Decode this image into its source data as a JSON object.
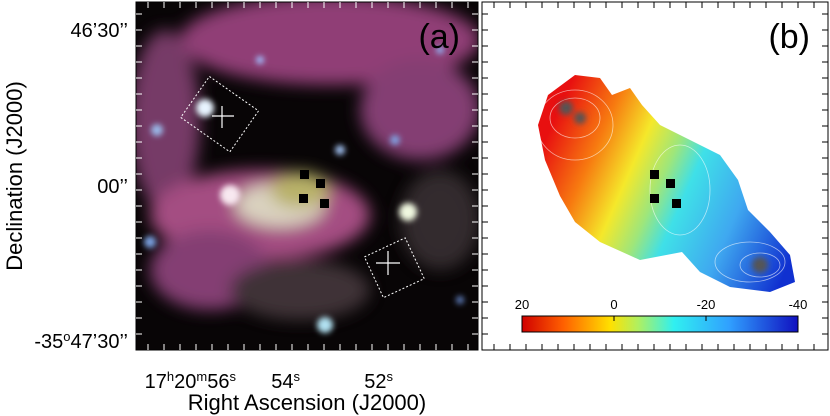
{
  "panel_a": {
    "label": "(a)"
  },
  "panel_b": {
    "label": "(b)",
    "colorbar": {
      "lim": [
        20,
        -40
      ],
      "ticks": [
        20,
        0,
        -20,
        -40
      ]
    }
  },
  "y_axis": {
    "title": "Declination (J2000)",
    "tick_labels": [
      [
        "46’30’’"
      ],
      [
        "00’’"
      ],
      [
        "-35",
        "o",
        "47’30’’"
      ]
    ]
  },
  "x_axis": {
    "title": "Right Ascension (J2000)",
    "tick_labels": [
      [
        "17",
        "h",
        "20",
        "m",
        "56",
        "s"
      ],
      [
        "54",
        "s"
      ],
      [
        "52",
        "s"
      ]
    ]
  }
}
